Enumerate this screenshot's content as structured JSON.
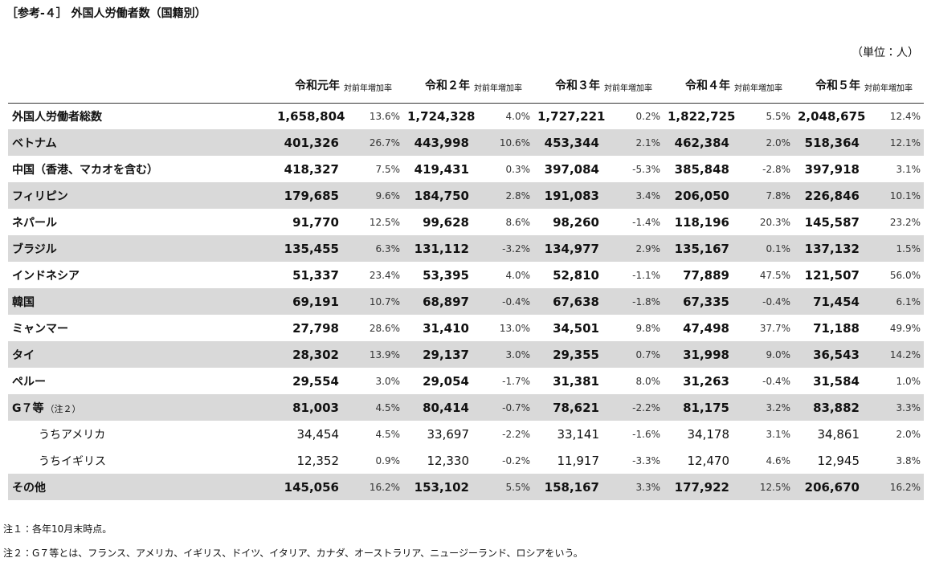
{
  "title": "［参考-４］ 外国人労働者数（国籍別）",
  "unit": "（単位：人）",
  "table": {
    "header": [
      {
        "year": "令和元年",
        "rate": "対前年増加率"
      },
      {
        "year": "令和２年",
        "rate": "対前年増加率"
      },
      {
        "year": "令和３年",
        "rate": "対前年増加率"
      },
      {
        "year": "令和４年",
        "rate": "対前年増加率"
      },
      {
        "year": "令和５年",
        "rate": "対前年増加率"
      }
    ],
    "rows": [
      {
        "label": "外国人労働者総数",
        "cells": [
          [
            "1,658,804",
            "13.6%"
          ],
          [
            "1,724,328",
            "4.0%"
          ],
          [
            "1,727,221",
            "0.2%"
          ],
          [
            "1,822,725",
            "5.5%"
          ],
          [
            "2,048,675",
            "12.4%"
          ]
        ]
      },
      {
        "label": "ベトナム",
        "cells": [
          [
            "401,326",
            "26.7%"
          ],
          [
            "443,998",
            "10.6%"
          ],
          [
            "453,344",
            "2.1%"
          ],
          [
            "462,384",
            "2.0%"
          ],
          [
            "518,364",
            "12.1%"
          ]
        ]
      },
      {
        "label": "中国（香港、マカオを含む）",
        "cells": [
          [
            "418,327",
            "7.5%"
          ],
          [
            "419,431",
            "0.3%"
          ],
          [
            "397,084",
            "-5.3%"
          ],
          [
            "385,848",
            "-2.8%"
          ],
          [
            "397,918",
            "3.1%"
          ]
        ]
      },
      {
        "label": "フィリピン",
        "cells": [
          [
            "179,685",
            "9.6%"
          ],
          [
            "184,750",
            "2.8%"
          ],
          [
            "191,083",
            "3.4%"
          ],
          [
            "206,050",
            "7.8%"
          ],
          [
            "226,846",
            "10.1%"
          ]
        ]
      },
      {
        "label": "ネパール",
        "cells": [
          [
            "91,770",
            "12.5%"
          ],
          [
            "99,628",
            "8.6%"
          ],
          [
            "98,260",
            "-1.4%"
          ],
          [
            "118,196",
            "20.3%"
          ],
          [
            "145,587",
            "23.2%"
          ]
        ]
      },
      {
        "label": "ブラジル",
        "cells": [
          [
            "135,455",
            "6.3%"
          ],
          [
            "131,112",
            "-3.2%"
          ],
          [
            "134,977",
            "2.9%"
          ],
          [
            "135,167",
            "0.1%"
          ],
          [
            "137,132",
            "1.5%"
          ]
        ]
      },
      {
        "label": "インドネシア",
        "cells": [
          [
            "51,337",
            "23.4%"
          ],
          [
            "53,395",
            "4.0%"
          ],
          [
            "52,810",
            "-1.1%"
          ],
          [
            "77,889",
            "47.5%"
          ],
          [
            "121,507",
            "56.0%"
          ]
        ]
      },
      {
        "label": "韓国",
        "cells": [
          [
            "69,191",
            "10.7%"
          ],
          [
            "68,897",
            "-0.4%"
          ],
          [
            "67,638",
            "-1.8%"
          ],
          [
            "67,335",
            "-0.4%"
          ],
          [
            "71,454",
            "6.1%"
          ]
        ]
      },
      {
        "label": "ミャンマー",
        "cells": [
          [
            "27,798",
            "28.6%"
          ],
          [
            "31,410",
            "13.0%"
          ],
          [
            "34,501",
            "9.8%"
          ],
          [
            "47,498",
            "37.7%"
          ],
          [
            "71,188",
            "49.9%"
          ]
        ]
      },
      {
        "label": "タイ",
        "cells": [
          [
            "28,302",
            "13.9%"
          ],
          [
            "29,137",
            "3.0%"
          ],
          [
            "29,355",
            "0.7%"
          ],
          [
            "31,998",
            "9.0%"
          ],
          [
            "36,543",
            "14.2%"
          ]
        ]
      },
      {
        "label": "ペルー",
        "cells": [
          [
            "29,554",
            "3.0%"
          ],
          [
            "29,054",
            "-1.7%"
          ],
          [
            "31,381",
            "8.0%"
          ],
          [
            "31,263",
            "-0.4%"
          ],
          [
            "31,584",
            "1.0%"
          ]
        ]
      },
      {
        "label": "G７等",
        "label_note": "（注２）",
        "cells": [
          [
            "81,003",
            "4.5%"
          ],
          [
            "80,414",
            "-0.7%"
          ],
          [
            "78,621",
            "-2.2%"
          ],
          [
            "81,175",
            "3.2%"
          ],
          [
            "83,882",
            "3.3%"
          ]
        ]
      },
      {
        "label": "うちアメリカ",
        "cells": [
          [
            "34,454",
            "4.5%"
          ],
          [
            "33,697",
            "-2.2%"
          ],
          [
            "33,141",
            "-1.6%"
          ],
          [
            "34,178",
            "3.1%"
          ],
          [
            "34,861",
            "2.0%"
          ]
        ]
      },
      {
        "label": "うちイギリス",
        "cells": [
          [
            "12,352",
            "0.9%"
          ],
          [
            "12,330",
            "-0.2%"
          ],
          [
            "11,917",
            "-3.3%"
          ],
          [
            "12,470",
            "4.6%"
          ],
          [
            "12,945",
            "3.8%"
          ]
        ]
      },
      {
        "label": "その他",
        "cells": [
          [
            "145,056",
            "16.2%"
          ],
          [
            "153,102",
            "5.5%"
          ],
          [
            "158,167",
            "3.3%"
          ],
          [
            "177,922",
            "12.5%"
          ],
          [
            "206,670",
            "16.2%"
          ]
        ]
      }
    ]
  },
  "notes": [
    "注１：各年10月末時点。",
    "注２：G７等とは、フランス、アメリカ、イギリス、ドイツ、イタリア、カナダ、オーストラリア、ニュージーランド、ロシアをいう。"
  ]
}
